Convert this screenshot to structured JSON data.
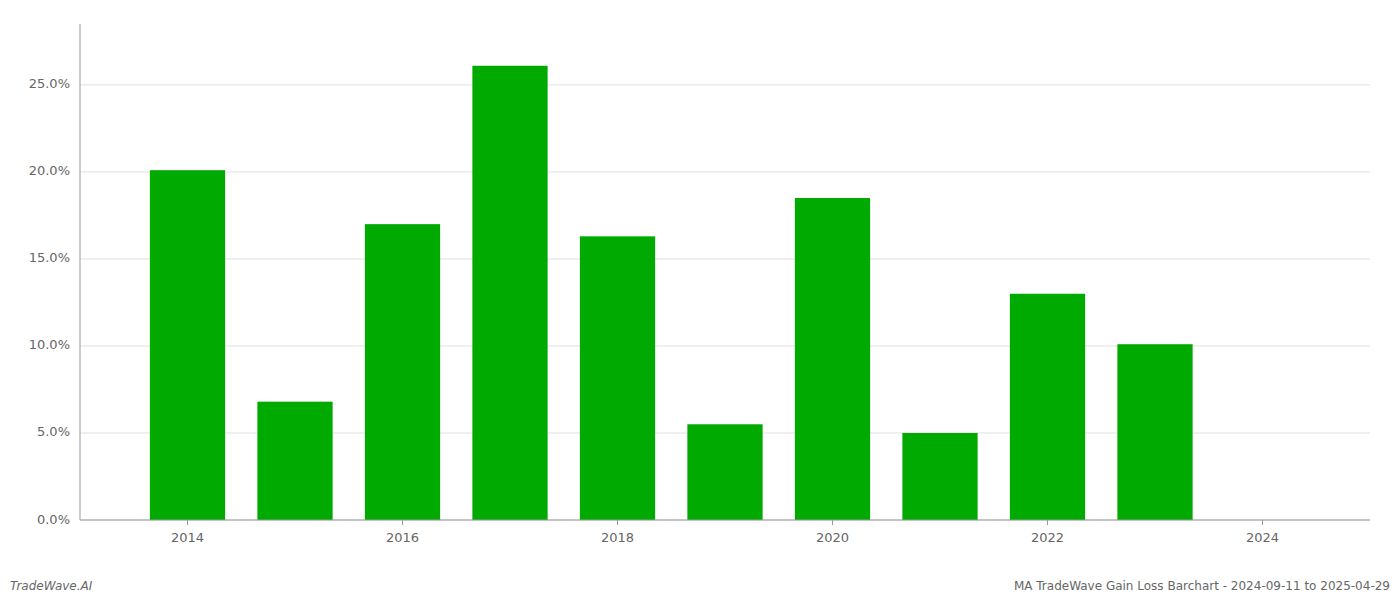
{
  "chart_data": {
    "type": "bar",
    "x": [
      2014,
      2015,
      2016,
      2017,
      2018,
      2019,
      2020,
      2021,
      2022,
      2023
    ],
    "values": [
      0.201,
      0.068,
      0.17,
      0.261,
      0.163,
      0.055,
      0.185,
      0.05,
      0.13,
      0.101
    ],
    "color": "#00aa00",
    "xlim": [
      2013.0,
      2025.0
    ],
    "xticks": [
      2014,
      2016,
      2018,
      2020,
      2022,
      2024
    ],
    "ylim": [
      0,
      0.285
    ],
    "yticks": [
      {
        "value": 0.0,
        "label": "0.0%"
      },
      {
        "value": 0.05,
        "label": "5.0%"
      },
      {
        "value": 0.1,
        "label": "10.0%"
      },
      {
        "value": 0.15,
        "label": "15.0%"
      },
      {
        "value": 0.2,
        "label": "20.0%"
      },
      {
        "value": 0.25,
        "label": "25.0%"
      }
    ],
    "grid": true,
    "annotations": [
      "TradeWave.AI",
      "MA TradeWave Gain Loss Barchart - 2024-09-11 to 2025-04-29"
    ]
  }
}
